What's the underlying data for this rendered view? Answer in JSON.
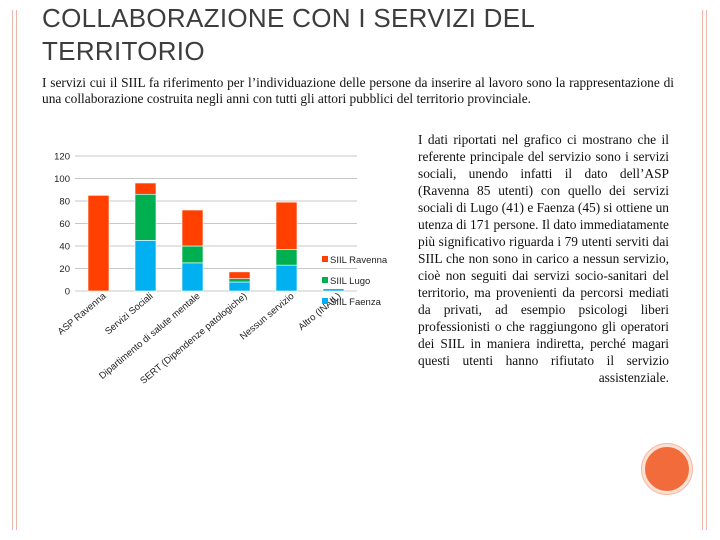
{
  "slide": {
    "title": "COLLABORAZIONE CON I SERVIZI DEL TERRITORIO",
    "intro": "I servizi cui il SIIL fa riferimento per l’individuazione delle persone da inserire al lavoro sono la rappresentazione di una collaborazione costruita negli anni con tutti gli attori pubblici del territorio provinciale.",
    "side_text": "I dati riportati nel grafico ci mostrano che il referente principale del servizio sono i servizi sociali, unendo infatti il dato dell’ASP (Ravenna 85 utenti) con quello dei servizi sociali di Lugo (41) e Faenza (45) si ottiene un utenza di 171 persone. Il dato immediatamente più significativo riguarda i 79 utenti serviti dai SIIL che non sono in carico a nessun servizio, cioè non seguiti dai servizi socio-sanitari del territorio, ma provenienti da percorsi mediati da privati, ad esempio psicologi liberi professionisti o che raggiungono gli operatori dei SIIL in maniera indiretta, perché magari questi utenti hanno rifiutato il servizio assistenziale.",
    "colors": {
      "accent": "#f26b3a",
      "frame": "#e8b8a8"
    }
  },
  "chart_data": {
    "type": "bar",
    "stacked": true,
    "categories": [
      "ASP Ravenna",
      "Servizi Sociali",
      "Dipartimento di salute mentale",
      "SERT (Dipendenze patologiche)",
      "Nessun servizio",
      "Altro (INAIL)"
    ],
    "series": [
      {
        "name": "SIIL Faenza",
        "color": "#00b0f0",
        "values": [
          0,
          45,
          25,
          8,
          23,
          2
        ]
      },
      {
        "name": "SIIL Lugo",
        "color": "#00b050",
        "values": [
          0,
          41,
          15,
          3,
          14,
          0
        ]
      },
      {
        "name": "SIIL Ravenna",
        "color": "#ff4000",
        "values": [
          85,
          10,
          32,
          6,
          42,
          0
        ]
      }
    ],
    "legend_order": [
      "SIIL Ravenna",
      "SIIL Lugo",
      "SIIL Faenza"
    ],
    "legend_position": "right",
    "yticks": [
      "0",
      "20",
      "40",
      "60",
      "80",
      "100",
      "120"
    ],
    "ylim": [
      0,
      120
    ],
    "grid": true
  }
}
